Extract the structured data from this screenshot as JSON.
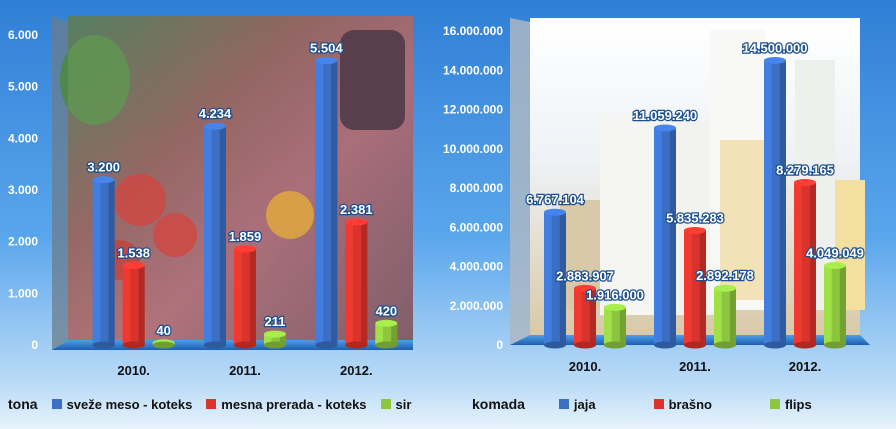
{
  "chart_data": [
    {
      "type": "bar",
      "unit_label": "tona",
      "categories": [
        "2010.",
        "2011.",
        "2012."
      ],
      "ylim": [
        0,
        6000
      ],
      "yticks": [
        "0",
        "1.000",
        "2.000",
        "3.000",
        "4.000",
        "5.000",
        "6.000"
      ],
      "ytick_values": [
        0,
        1000,
        2000,
        3000,
        4000,
        5000,
        6000
      ],
      "series": [
        {
          "name": "sveže meso - koteks",
          "color": "#3a6fc4",
          "values": [
            3200,
            4234,
            5504
          ],
          "labels": [
            "3.200",
            "4.234",
            "5.504"
          ]
        },
        {
          "name": "mesna prerada - koteks",
          "color": "#d9332b",
          "values": [
            1538,
            1859,
            2381
          ],
          "labels": [
            "1.538",
            "1.859",
            "2.381"
          ]
        },
        {
          "name": "sir",
          "color": "#8cc63f",
          "values": [
            40,
            211,
            420
          ],
          "labels": [
            "40",
            "211",
            "420"
          ]
        }
      ]
    },
    {
      "type": "bar",
      "unit_label": "komada",
      "categories": [
        "2010.",
        "2011.",
        "2012."
      ],
      "ylim": [
        0,
        16000000
      ],
      "yticks": [
        "0",
        "2.000.000",
        "4.000.000",
        "6.000.000",
        "8.000.000",
        "10.000.000",
        "12.000.000",
        "14.000.000",
        "16.000.000"
      ],
      "ytick_values": [
        0,
        2000000,
        4000000,
        6000000,
        8000000,
        10000000,
        12000000,
        14000000,
        16000000
      ],
      "series": [
        {
          "name": "jaja",
          "color": "#3a6fc4",
          "values": [
            6767104,
            11059240,
            14500000
          ],
          "labels": [
            "6.767.104",
            "11.059.240",
            "14.500.000"
          ]
        },
        {
          "name": "brašno",
          "color": "#d9332b",
          "values": [
            2883907,
            5835283,
            8279165
          ],
          "labels": [
            "2.883.907",
            "5.835.283",
            "8.279.165"
          ]
        },
        {
          "name": "flips",
          "color": "#8cc63f",
          "values": [
            1916000,
            2892178,
            4049049
          ],
          "labels": [
            "1.916.000",
            "2.892.178",
            "4.049.049"
          ]
        }
      ]
    }
  ]
}
